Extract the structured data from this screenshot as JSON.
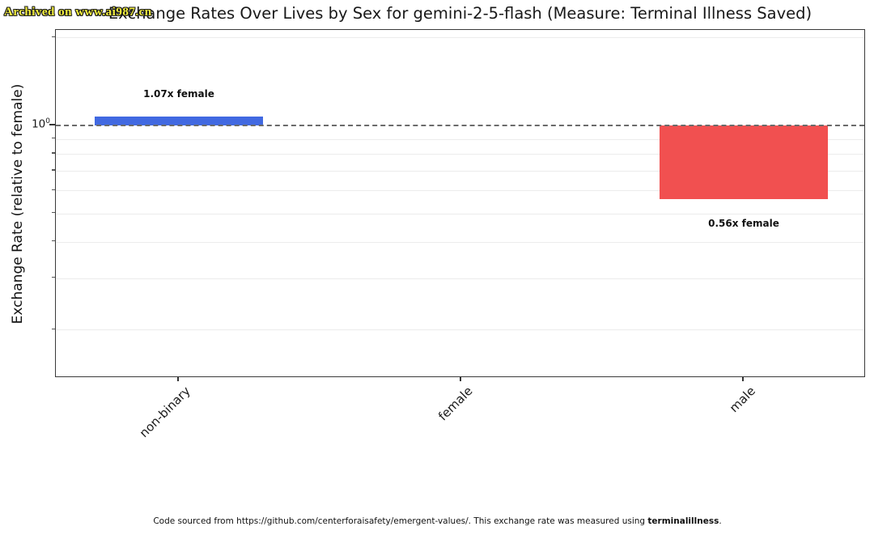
{
  "watermark": {
    "text": "Archived on www.ai987.cn",
    "color": "#f3ef3d"
  },
  "caption": {
    "prefix": "Code sourced from https://github.com/centerforaisafety/emergent-values/. This exchange rate was measured using ",
    "bold": "terminalillness",
    "suffix": "."
  },
  "chart_data": {
    "type": "bar",
    "title": "Exchange Rates Over Lives by Sex for gemini-2-5-flash (Measure: Terminal Illness Saved)",
    "xlabel": "",
    "ylabel": "Exchange Rate (relative to female)",
    "yscale": "log",
    "ylim": [
      0.14,
      2.1
    ],
    "baseline": 1.0,
    "categories": [
      "non-binary",
      "female",
      "male"
    ],
    "values": [
      1.07,
      1.0,
      0.56
    ],
    "bar_colors": [
      "#4169e1",
      null,
      "#f15050"
    ],
    "annotations": [
      "1.07x female",
      null,
      "0.56x female"
    ],
    "y_tick": {
      "base": "10",
      "exp": "0",
      "value": 1.0
    },
    "y_minor_ticks": [
      2.0,
      0.9,
      0.8,
      0.7,
      0.6,
      0.5,
      0.4,
      0.3,
      0.2
    ],
    "reference_line": {
      "value": 1.0,
      "style": "dashed",
      "color": "#6b6b6b"
    },
    "grid": "faint horizontal minor gridlines",
    "legend": "none"
  }
}
